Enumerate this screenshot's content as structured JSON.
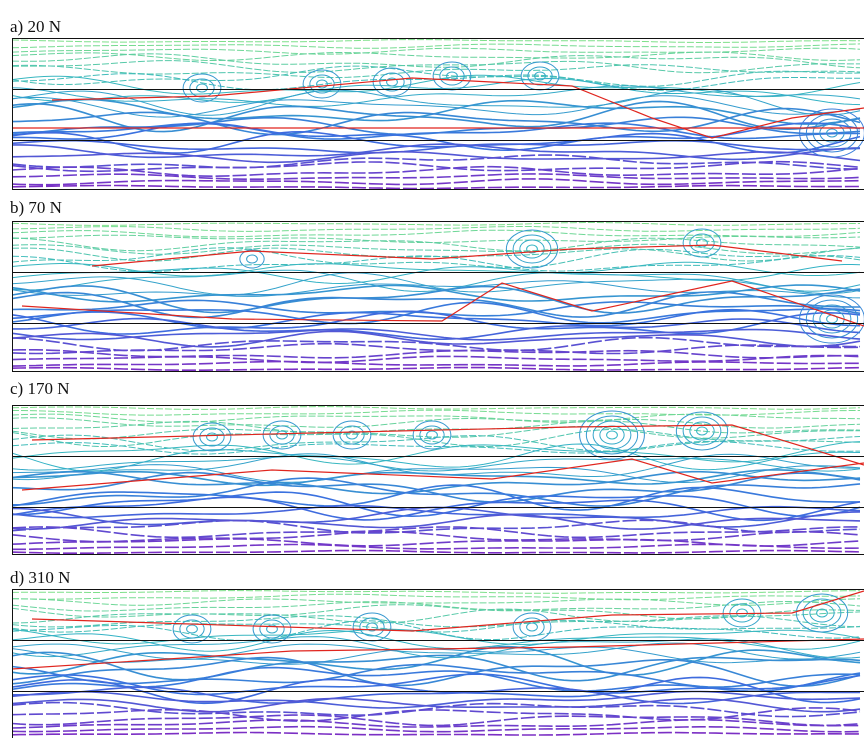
{
  "panels": [
    {
      "id": "a",
      "label": "a) 20 N"
    },
    {
      "id": "b",
      "label": "b) 70 N"
    },
    {
      "id": "c",
      "label": "c) 170 N"
    },
    {
      "id": "d",
      "label": "d) 310 N"
    }
  ],
  "colors": {
    "frame": "#111111",
    "red_trace": "#e0251e",
    "contour_top": "#7ee08a",
    "contour_mid": "#33b4c4",
    "contour_blue": "#3a6fe0",
    "contour_bottom": "#7b2fc4"
  }
}
